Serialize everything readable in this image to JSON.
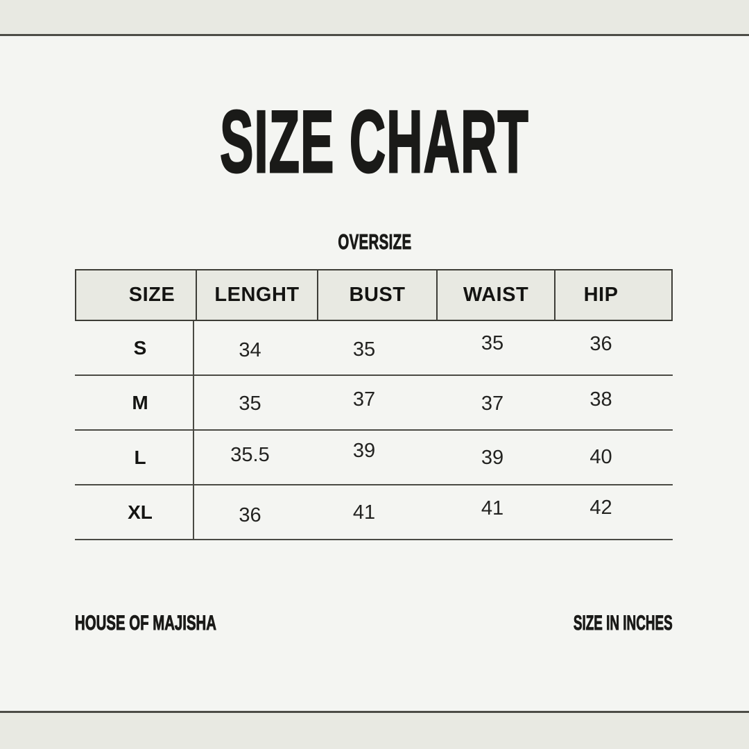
{
  "colors": {
    "page_background": "#f4f5f2",
    "band_background": "#e8e9e2",
    "header_cell_background": "#e8e9e2",
    "rule_line": "#4c4c46",
    "table_line": "#3d3d37",
    "text": "#1a1a18"
  },
  "title": "SIZE CHART",
  "subtitle": "OVERSIZE",
  "table": {
    "headers": [
      "SIZE",
      "LENGHT",
      "BUST",
      "WAIST",
      "HIP"
    ],
    "rows": [
      {
        "size": "S",
        "values": [
          "34",
          "35",
          "35",
          "36"
        ]
      },
      {
        "size": "M",
        "values": [
          "35",
          "37",
          "37",
          "38"
        ]
      },
      {
        "size": "L",
        "values": [
          "35.5",
          "39",
          "39",
          "40"
        ]
      },
      {
        "size": "XL",
        "values": [
          "36",
          "41",
          "41",
          "42"
        ]
      }
    ]
  },
  "footer": {
    "brand": "HOUSE OF MAJISHA",
    "unit_note": "SIZE IN INCHES"
  },
  "chart_data": {
    "type": "table",
    "title": "SIZE CHART",
    "subtitle": "OVERSIZE",
    "columns": [
      "SIZE",
      "LENGHT",
      "BUST",
      "WAIST",
      "HIP"
    ],
    "rows": [
      [
        "S",
        34,
        35,
        35,
        36
      ],
      [
        "M",
        35,
        37,
        37,
        38
      ],
      [
        "L",
        35.5,
        39,
        39,
        40
      ],
      [
        "XL",
        36,
        41,
        41,
        42
      ]
    ],
    "unit": "inches"
  }
}
